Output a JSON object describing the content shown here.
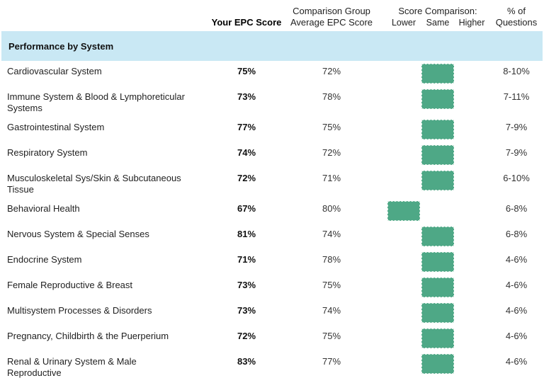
{
  "header": {
    "col_your_score": "Your EPC Score",
    "col_comparison_line1": "Comparison Group",
    "col_comparison_line2": "Average EPC Score",
    "col_score_comparison": "Score Comparison:",
    "sub_lower": "Lower",
    "sub_same": "Same",
    "sub_higher": "Higher",
    "col_questions_line1": "% of",
    "col_questions_line2": "Questions"
  },
  "section_title": "Performance by System",
  "colors": {
    "marker_green": "#4EA886",
    "section_bg": "#C9E8F4"
  },
  "rows": [
    {
      "label": "Cardiovascular System",
      "your_score": "75%",
      "avg_score": "72%",
      "comparison": "same",
      "pct_questions": "8-10%"
    },
    {
      "label": "Immune System & Blood & Lymphoreticular\nSystems",
      "your_score": "73%",
      "avg_score": "78%",
      "comparison": "same",
      "pct_questions": "7-11%"
    },
    {
      "label": "Gastrointestinal System",
      "your_score": "77%",
      "avg_score": "75%",
      "comparison": "same",
      "pct_questions": "7-9%"
    },
    {
      "label": "Respiratory System",
      "your_score": "74%",
      "avg_score": "72%",
      "comparison": "same",
      "pct_questions": "7-9%"
    },
    {
      "label": "Musculoskeletal Sys/Skin & Subcutaneous\nTissue",
      "your_score": "72%",
      "avg_score": "71%",
      "comparison": "same",
      "pct_questions": "6-10%"
    },
    {
      "label": "Behavioral Health",
      "your_score": "67%",
      "avg_score": "80%",
      "comparison": "lower",
      "pct_questions": "6-8%"
    },
    {
      "label": "Nervous System & Special Senses",
      "your_score": "81%",
      "avg_score": "74%",
      "comparison": "same",
      "pct_questions": "6-8%"
    },
    {
      "label": "Endocrine System",
      "your_score": "71%",
      "avg_score": "78%",
      "comparison": "same",
      "pct_questions": "4-6%"
    },
    {
      "label": "Female Reproductive & Breast",
      "your_score": "73%",
      "avg_score": "75%",
      "comparison": "same",
      "pct_questions": "4-6%"
    },
    {
      "label": "Multisystem Processes & Disorders",
      "your_score": "73%",
      "avg_score": "74%",
      "comparison": "same",
      "pct_questions": "4-6%"
    },
    {
      "label": "Pregnancy, Childbirth & the Puerperium",
      "your_score": "72%",
      "avg_score": "75%",
      "comparison": "same",
      "pct_questions": "4-6%"
    },
    {
      "label": "Renal & Urinary System & Male\nReproductive",
      "your_score": "83%",
      "avg_score": "77%",
      "comparison": "same",
      "pct_questions": "4-6%"
    }
  ]
}
